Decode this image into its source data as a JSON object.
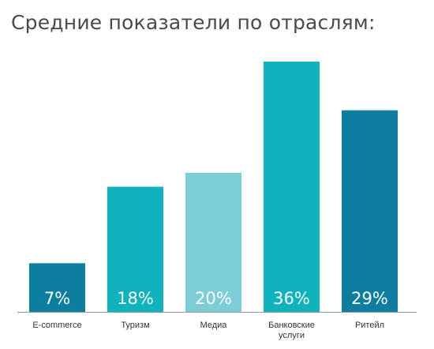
{
  "chart_data": {
    "type": "bar",
    "title": "Средние показатели по отраслям:",
    "categories": [
      [
        "E-commerce"
      ],
      [
        "Туризм"
      ],
      [
        "Медиа"
      ],
      [
        "Банковские",
        "услуги"
      ],
      [
        "Ритейл"
      ]
    ],
    "values": [
      7,
      18,
      20,
      36,
      29
    ],
    "value_labels": [
      "7%",
      "18%",
      "20%",
      "36%",
      "29%"
    ],
    "colors": [
      "#0e7ea0",
      "#0fb3bd",
      "#7ccdd6",
      "#0fb3bd",
      "#0e7ea0"
    ],
    "ylim": [
      0,
      40
    ],
    "grid": false,
    "legend": "none"
  }
}
